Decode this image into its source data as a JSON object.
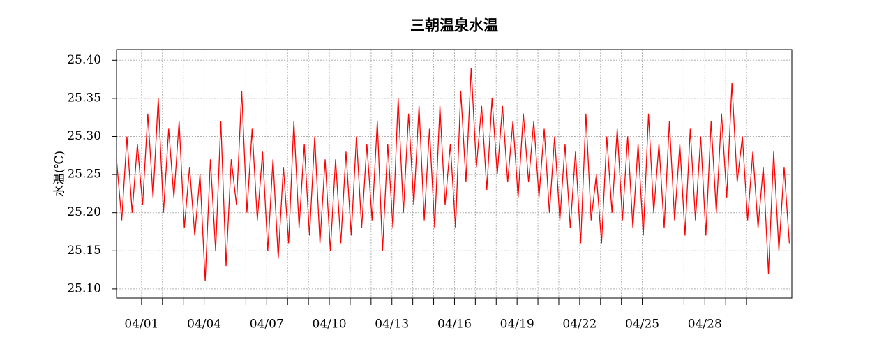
{
  "chart_data": {
    "type": "line",
    "title": "三朝温泉水温",
    "ylabel": "水温(℃)",
    "x": [
      -0.2,
      0.05,
      0.3,
      0.55,
      0.8,
      1.05,
      1.3,
      1.55,
      1.8,
      2.05,
      2.3,
      2.55,
      2.8,
      3.05,
      3.3,
      3.55,
      3.8,
      4.05,
      4.3,
      4.55,
      4.8,
      5.05,
      5.3,
      5.55,
      5.8,
      6.05,
      6.3,
      6.55,
      6.8,
      7.05,
      7.3,
      7.55,
      7.8,
      8.05,
      8.3,
      8.55,
      8.8,
      9.05,
      9.3,
      9.55,
      9.8,
      10.05,
      10.3,
      10.55,
      10.8,
      11.05,
      11.3,
      11.55,
      11.8,
      12.05,
      12.3,
      12.55,
      12.8,
      13.05,
      13.3,
      13.55,
      13.8,
      14.05,
      14.3,
      14.55,
      14.8,
      15.05,
      15.3,
      15.55,
      15.8,
      16.05,
      16.3,
      16.55,
      16.8,
      17.05,
      17.3,
      17.55,
      17.8,
      18.05,
      18.3,
      18.55,
      18.8,
      19.05,
      19.3,
      19.55,
      19.8,
      20.05,
      20.3,
      20.55,
      20.8,
      21.05,
      21.3,
      21.55,
      21.8,
      22.05,
      22.3,
      22.55,
      22.8,
      23.05,
      23.3,
      23.55,
      23.8,
      24.05,
      24.3,
      24.55,
      24.8,
      25.05,
      25.3,
      25.55,
      25.8,
      26.05,
      26.3,
      26.55,
      26.8,
      27.05,
      27.3,
      27.55,
      27.8,
      28.05,
      28.3,
      28.55,
      28.8,
      29.05,
      29.3,
      29.55,
      29.8,
      30.05,
      30.3,
      30.55,
      30.8,
      31.05,
      31.3,
      31.55,
      31.8,
      32.05
    ],
    "series": [
      {
        "color": "#ff0000",
        "values": [
          25.27,
          25.19,
          25.3,
          25.2,
          25.29,
          25.21,
          25.33,
          25.22,
          25.35,
          25.2,
          25.31,
          25.22,
          25.32,
          25.18,
          25.26,
          25.17,
          25.25,
          25.11,
          25.27,
          25.15,
          25.32,
          25.13,
          25.27,
          25.21,
          25.36,
          25.2,
          25.31,
          25.19,
          25.28,
          25.15,
          25.27,
          25.14,
          25.26,
          25.16,
          25.32,
          25.18,
          25.29,
          25.17,
          25.3,
          25.16,
          25.27,
          25.15,
          25.27,
          25.16,
          25.28,
          25.17,
          25.3,
          25.18,
          25.29,
          25.19,
          25.32,
          25.15,
          25.29,
          25.18,
          25.35,
          25.2,
          25.33,
          25.21,
          25.34,
          25.19,
          25.31,
          25.18,
          25.34,
          25.21,
          25.29,
          25.18,
          25.36,
          25.24,
          25.39,
          25.26,
          25.34,
          25.23,
          25.35,
          25.25,
          25.34,
          25.24,
          25.32,
          25.22,
          25.33,
          25.24,
          25.32,
          25.22,
          25.31,
          25.2,
          25.3,
          25.19,
          25.29,
          25.18,
          25.28,
          25.16,
          25.33,
          25.19,
          25.25,
          25.16,
          25.3,
          25.2,
          25.31,
          25.19,
          25.3,
          25.18,
          25.29,
          25.17,
          25.33,
          25.2,
          25.29,
          25.18,
          25.32,
          25.19,
          25.29,
          25.17,
          25.31,
          25.19,
          25.3,
          25.17,
          25.32,
          25.2,
          25.33,
          25.22,
          25.37,
          25.24,
          25.3,
          25.19,
          25.28,
          25.18,
          25.26,
          25.12,
          25.28,
          25.15,
          25.26,
          25.16
        ]
      }
    ],
    "xlim": [
      -0.2,
      32.17
    ],
    "xticks": [
      {
        "value": 1,
        "label": "04/01"
      },
      {
        "value": 4,
        "label": "04/04"
      },
      {
        "value": 7,
        "label": "04/07"
      },
      {
        "value": 10,
        "label": "04/10"
      },
      {
        "value": 13,
        "label": "04/13"
      },
      {
        "value": 16,
        "label": "04/16"
      },
      {
        "value": 19,
        "label": "04/19"
      },
      {
        "value": 22,
        "label": "04/22"
      },
      {
        "value": 25,
        "label": "04/25"
      },
      {
        "value": 28,
        "label": "04/28"
      }
    ],
    "minor_xticks": [
      2,
      3,
      5,
      6,
      8,
      9,
      11,
      12,
      14,
      15,
      17,
      18,
      20,
      21,
      23,
      24,
      26,
      27,
      29,
      30
    ],
    "ylim": [
      25.088,
      25.414
    ],
    "yticks": [
      {
        "value": 25.1,
        "label": "25.10"
      },
      {
        "value": 25.15,
        "label": "25.15"
      },
      {
        "value": 25.2,
        "label": "25.20"
      },
      {
        "value": 25.25,
        "label": "25.25"
      },
      {
        "value": 25.3,
        "label": "25.30"
      },
      {
        "value": 25.35,
        "label": "25.35"
      },
      {
        "value": 25.4,
        "label": "25.40"
      }
    ],
    "grid": true
  }
}
